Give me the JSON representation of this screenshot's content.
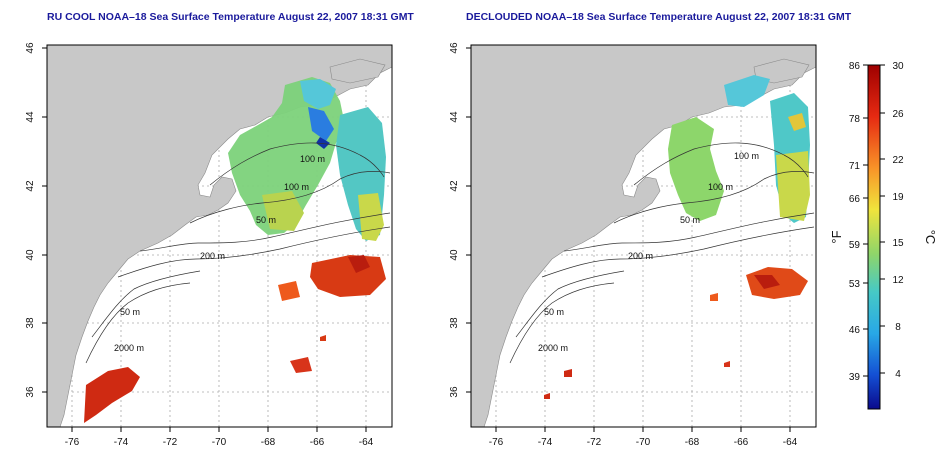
{
  "panels": [
    {
      "title": "RU COOL NOAA–18 Sea Surface Temperature August 22, 2007 18:31 GMT",
      "contours": [
        "100 m",
        "100 m",
        "50 m",
        "200 m",
        "50 m",
        "2000 m"
      ]
    },
    {
      "title": "DECLOUDED NOAA–18 Sea Surface Temperature August 22, 2007 18:31 GMT",
      "contours": [
        "100 m",
        "100 m",
        "50 m",
        "200 m",
        "50 m",
        "2000 m"
      ]
    }
  ],
  "axes": {
    "x_ticks": [
      "-76",
      "-74",
      "-72",
      "-70",
      "-68",
      "-66",
      "-64"
    ],
    "y_ticks": [
      "36",
      "38",
      "40",
      "42",
      "44",
      "46"
    ]
  },
  "colorbar": {
    "fahrenheit_ticks": [
      "86",
      "78",
      "71",
      "66",
      "59",
      "53",
      "46",
      "39"
    ],
    "celsius_ticks": [
      "30",
      "26",
      "22",
      "19",
      "15",
      "12",
      "8",
      "4"
    ],
    "fahrenheit_label": "°F",
    "celsius_label": "°C"
  }
}
